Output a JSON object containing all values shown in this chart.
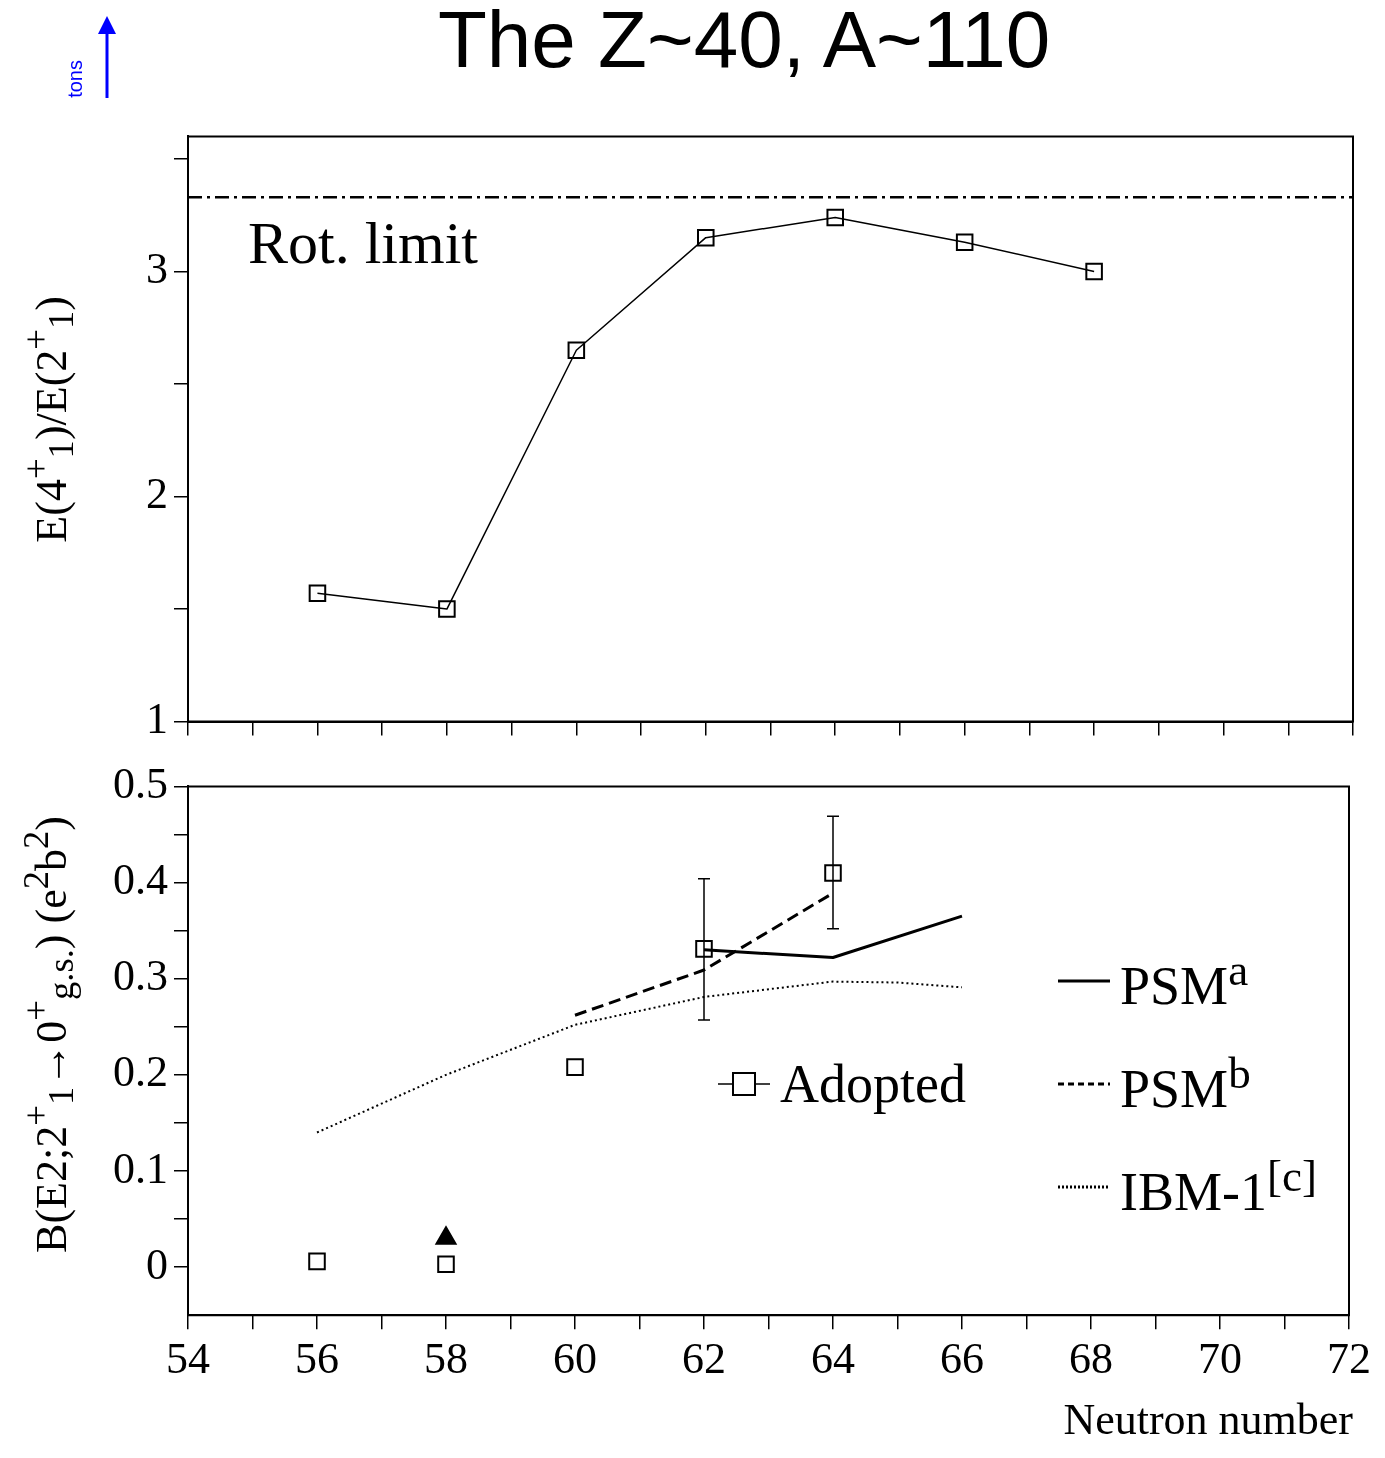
{
  "chart_data": [
    {
      "type": "line",
      "title": "The Z~40, A~110",
      "ylabel": "E(4$^{+}$$_{1}$)/E(2$^{+}$$_{1}$)",
      "annotations": [
        "tons"
      ],
      "xlim": [
        54,
        72
      ],
      "xticks": [
        54,
        {
          "value": 55,
          "label": null
        },
        56,
        {
          "value": 57,
          "label": null
        },
        58,
        {
          "value": 59,
          "label": null
        },
        60,
        {
          "value": 61,
          "label": null
        },
        62,
        {
          "value": 63,
          "label": null
        },
        64,
        {
          "value": 65,
          "label": null
        },
        66,
        {
          "value": 67,
          "label": null
        },
        68,
        {
          "value": 69,
          "label": null
        },
        70,
        {
          "value": 71,
          "label": null
        },
        72
      ],
      "ylim": [
        1,
        3.6
      ],
      "yticks": [
        1,
        {
          "value": 1.5,
          "label": null
        },
        2,
        {
          "value": 2.5,
          "label": null
        },
        3,
        {
          "value": 3.5,
          "label": null
        }
      ],
      "tick_labels": "y",
      "marker": "square",
      "x": [
        56,
        58,
        60,
        62,
        64,
        66,
        68
      ],
      "series": [
        {
          "color": "#000000",
          "values": [
            1.57,
            1.5,
            2.65,
            3.15,
            3.24,
            3.13,
            3.0
          ]
        }
      ],
      "ref_lines": [
        {
          "axis": "y",
          "value": 3.33,
          "label": "Rot. limit",
          "line_style": "dashed"
        }
      ]
    },
    {
      "type": "line",
      "xlabel": "Neutron number",
      "ylabel": "B(E2;2$^{+}$$_{1}$→0$^{+}$$_{g.s.}$) (e$^{2}$b$^{2}$)",
      "xlim": [
        54,
        72
      ],
      "xticks": [
        54,
        {
          "value": 55,
          "label": null
        },
        56,
        {
          "value": 57,
          "label": null
        },
        58,
        {
          "value": 59,
          "label": null
        },
        60,
        {
          "value": 61,
          "label": null
        },
        62,
        {
          "value": 63,
          "label": null
        },
        64,
        {
          "value": 65,
          "label": null
        },
        66,
        {
          "value": 67,
          "label": null
        },
        68,
        {
          "value": 69,
          "label": null
        },
        70,
        {
          "value": 71,
          "label": null
        },
        72
      ],
      "ylim": [
        -0.05,
        0.5
      ],
      "yticks": [
        0,
        {
          "value": 0.05,
          "label": null
        },
        0.1,
        {
          "value": 0.15,
          "label": null
        },
        0.2,
        {
          "value": 0.25,
          "label": null
        },
        0.3,
        {
          "value": 0.35,
          "label": null
        },
        0.4,
        {
          "value": 0.45,
          "label": null
        },
        0.5
      ],
      "legend": "right",
      "series": [
        {
          "name": "Adopted",
          "type": "scatter",
          "marker": "square",
          "color": "#000000",
          "x": [
            56,
            58,
            60,
            62,
            64
          ],
          "values": [
            0.006,
            0.003,
            0.208,
            0.331,
            0.41
          ],
          "errors": [
            null,
            null,
            null,
            [
              0.257,
              0.404
            ],
            [
              0.352,
              0.469
            ]
          ]
        },
        {
          "type": "scatter",
          "marker": "triangle",
          "color": "#000000",
          "x": [
            58
          ],
          "values": [
            0.03
          ]
        },
        {
          "name": "PSM$^{a}$",
          "type": "line",
          "marker": "none",
          "line_style": "solid",
          "color": "#000000",
          "x": [
            62,
            64,
            66
          ],
          "values": [
            0.33,
            0.322,
            0.365
          ]
        },
        {
          "name": "PSM$^{b}$",
          "type": "line",
          "marker": "none",
          "line_style": "dashed",
          "color": "#000000",
          "x": [
            60,
            62,
            64
          ],
          "values": [
            0.262,
            0.309,
            0.389
          ]
        },
        {
          "name": "IBM-1$^{[c]}$",
          "type": "line",
          "marker": "none",
          "line_style": "dotted",
          "color": "#000000",
          "x": [
            56,
            58,
            60,
            62,
            64,
            65,
            66
          ],
          "values": [
            0.14,
            0.2,
            0.252,
            0.281,
            0.297,
            0.296,
            0.291
          ]
        }
      ]
    }
  ]
}
